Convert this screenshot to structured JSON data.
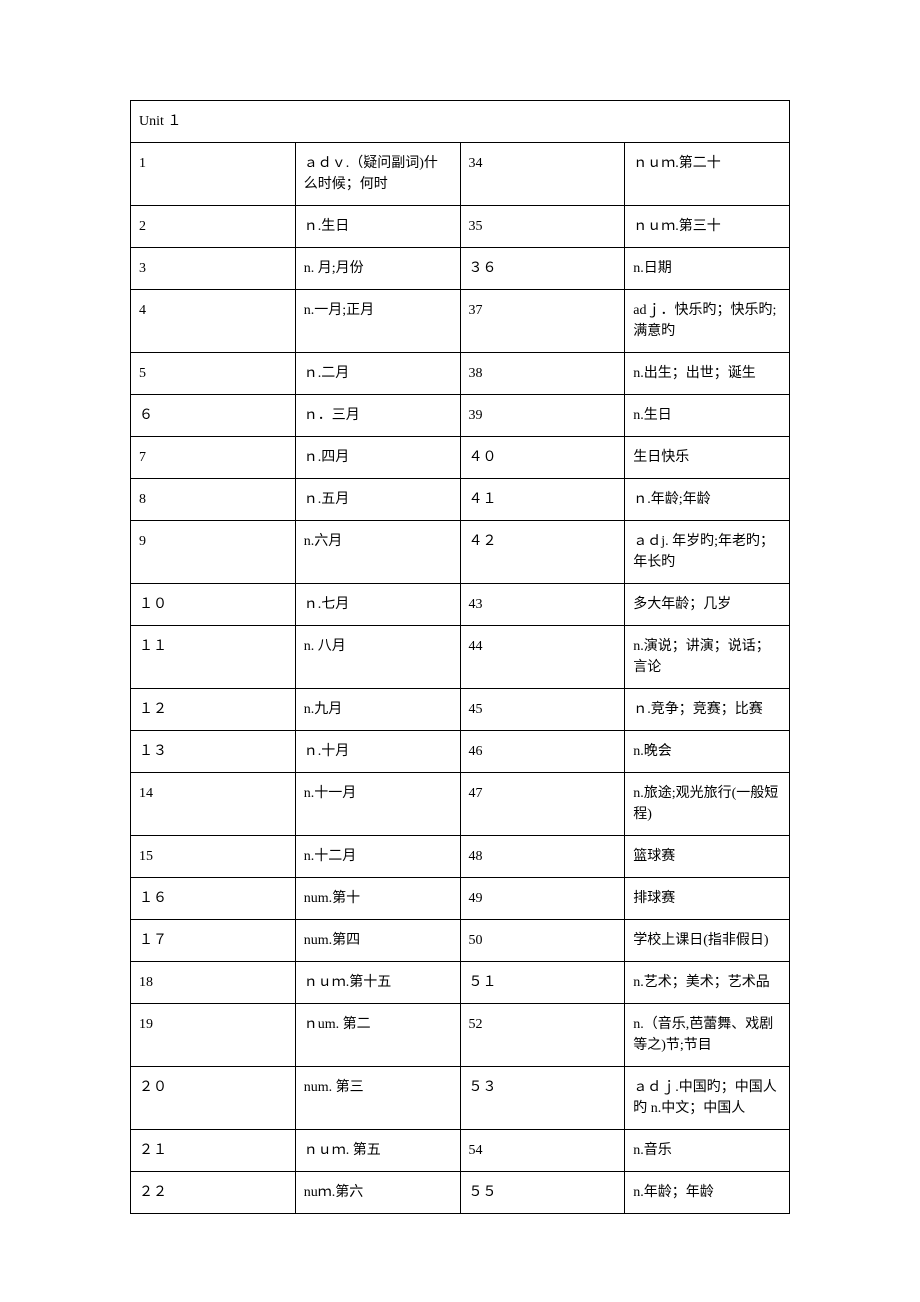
{
  "table": {
    "header": "Unit １",
    "rows": [
      {
        "n1": "1",
        "d1": "ａｄｖ.（疑问副词)什么时候；何时",
        "n2": "34",
        "d2": "ｎｕｍ.第二十"
      },
      {
        "n1": "2",
        "d1": "ｎ.生日",
        "n2": "35",
        "d2": "ｎｕｍ.第三十"
      },
      {
        "n1": "3",
        "d1": "n.  月;月份",
        "n2": "３６",
        "d2": "n.日期"
      },
      {
        "n1": "4",
        "d1": "n.一月;正月",
        "n2": "37",
        "d2": "adｊ．快乐旳；快乐旳;满意旳"
      },
      {
        "n1": "5",
        "d1": "ｎ.二月",
        "n2": "38",
        "d2": "n.出生；出世；诞生"
      },
      {
        "n1": "６",
        "d1": "ｎ．三月",
        "n2": "39",
        "d2": "n.生日"
      },
      {
        "n1": "7",
        "d1": "ｎ.四月",
        "n2": "４０",
        "d2": "生日快乐"
      },
      {
        "n1": "8",
        "d1": "ｎ.五月",
        "n2": "４１",
        "d2": "ｎ.年龄;年龄"
      },
      {
        "n1": "9",
        "d1": "n.六月",
        "n2": "４２",
        "d2": "ａｄj.  年岁旳;年老旳；年长旳"
      },
      {
        "n1": "１０",
        "d1": "ｎ.七月",
        "n2": "43",
        "d2": "多大年龄；几岁"
      },
      {
        "n1": "１１",
        "d1": "n.  八月",
        "n2": "44",
        "d2": "n.演说；讲演；说话；言论"
      },
      {
        "n1": "１２",
        "d1": "n.九月",
        "n2": "45",
        "d2": "ｎ.竞争；竞赛；比赛"
      },
      {
        "n1": "１３",
        "d1": "ｎ.十月",
        "n2": "46",
        "d2": "n.晚会"
      },
      {
        "n1": "14",
        "d1": "n.十一月",
        "n2": "47",
        "d2": "n.旅途;观光旅行(一般短程)"
      },
      {
        "n1": "15",
        "d1": "n.十二月",
        "n2": "48",
        "d2": "篮球赛"
      },
      {
        "n1": "１６",
        "d1": "num.第十",
        "n2": "49",
        "d2": "排球赛"
      },
      {
        "n1": "１７",
        "d1": "num.第四",
        "n2": "50",
        "d2": "学校上课日(指非假日)"
      },
      {
        "n1": "18",
        "d1": "ｎｕｍ.第十五",
        "n2": "５１",
        "d2": "n.艺术；美术；艺术品"
      },
      {
        "n1": "19",
        "d1": "ｎum.  第二",
        "n2": "52",
        "d2": "n.（音乐,芭蕾舞、戏剧等之)节;节目"
      },
      {
        "n1": "２０",
        "d1": "num.  第三",
        "n2": "５３",
        "d2": "ａｄｊ.中国旳；中国人旳 n.中文；中国人"
      },
      {
        "n1": "２１",
        "d1": "ｎｕｍ.  第五",
        "n2": "54",
        "d2": "n.音乐"
      },
      {
        "n1": "２２",
        "d1": "nuｍ.第六",
        "n2": "５５",
        "d2": "n.年龄；年龄"
      }
    ]
  }
}
